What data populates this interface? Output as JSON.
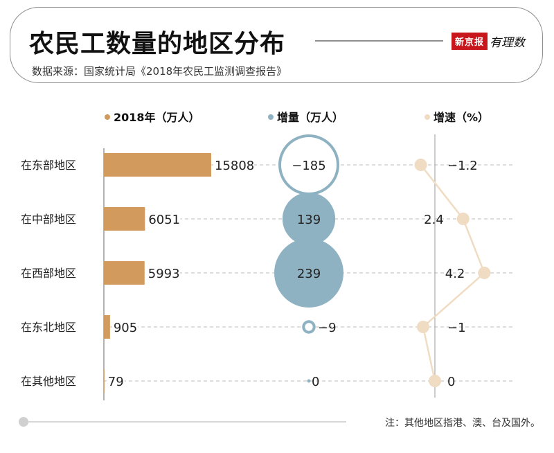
{
  "title": "农民工数量的地区分布",
  "source": "数据来源：国家统计局《2018年农民工监测调查报告》",
  "logo": {
    "brand": "新京报",
    "script": "有理数"
  },
  "footnote": "注：其他地区指港、澳、台及国外。",
  "colors": {
    "count": "#d29a5c",
    "increase": "#8fb2c3",
    "rate": "#f0dcc3",
    "axis": "#999999",
    "grid": "#bbbbbb"
  },
  "chart_data": {
    "type": "bar",
    "categories": [
      "在东部地区",
      "在中部地区",
      "在西部地区",
      "在东北地区",
      "在其他地区"
    ],
    "series": [
      {
        "name": "2018年（万人）",
        "kind": "bar",
        "values": [
          15808,
          6051,
          5993,
          905,
          79
        ],
        "labels": [
          "15808",
          "6051",
          "5993",
          "905",
          "79"
        ]
      },
      {
        "name": "增量（万人）",
        "kind": "bubble",
        "values": [
          -185,
          139,
          239,
          -9,
          0
        ],
        "labels": [
          "−185",
          "139",
          "239",
          "−9",
          "0"
        ]
      },
      {
        "name": "增速（%）",
        "kind": "line",
        "values": [
          -1.2,
          2.4,
          4.2,
          -1,
          0
        ],
        "labels": [
          "−1.2",
          "2.4",
          "4.2",
          "−1",
          "0"
        ]
      }
    ]
  }
}
